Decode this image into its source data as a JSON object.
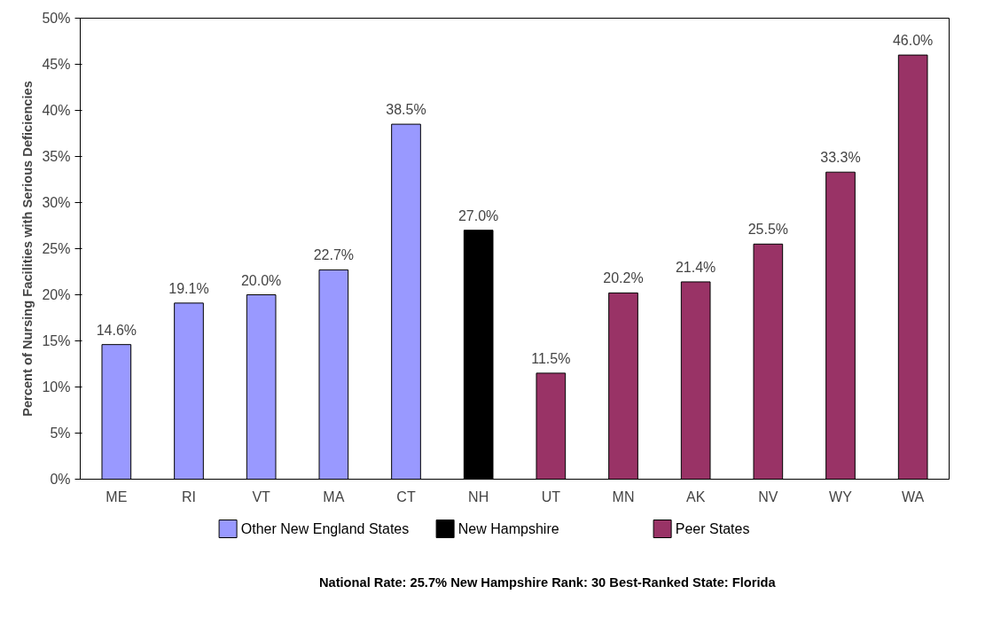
{
  "chart_data": {
    "type": "bar",
    "ylabel": "Percent of Nursing Facilities with Serious Deficiencies",
    "categories": [
      "ME",
      "RI",
      "VT",
      "MA",
      "CT",
      "NH",
      "UT",
      "MN",
      "AK",
      "NV",
      "WY",
      "WA"
    ],
    "series": [
      {
        "name": "Other New England States",
        "color": "#9999ff",
        "values": [
          14.6,
          19.1,
          20.0,
          22.7,
          38.5,
          null,
          null,
          null,
          null,
          null,
          null,
          null
        ],
        "value_labels": [
          "14.6%",
          "19.1%",
          "20.0%",
          "22.7%",
          "38.5%",
          null,
          null,
          null,
          null,
          null,
          null,
          null
        ]
      },
      {
        "name": "New Hampshire",
        "color": "#000000",
        "values": [
          null,
          null,
          null,
          null,
          null,
          27.0,
          null,
          null,
          null,
          null,
          null,
          null
        ],
        "value_labels": [
          null,
          null,
          null,
          null,
          null,
          "27.0%",
          null,
          null,
          null,
          null,
          null,
          null
        ]
      },
      {
        "name": "Peer States",
        "color": "#993366",
        "values": [
          null,
          null,
          null,
          null,
          null,
          null,
          11.5,
          20.2,
          21.4,
          25.5,
          33.3,
          46.0
        ],
        "value_labels": [
          null,
          null,
          null,
          null,
          null,
          null,
          "11.5%",
          "20.2%",
          "21.4%",
          "25.5%",
          "33.3%",
          "46.0%"
        ]
      }
    ],
    "ylim": [
      0,
      50
    ],
    "yticks": [
      {
        "value": 0,
        "label": "0%"
      },
      {
        "value": 5,
        "label": "5%"
      },
      {
        "value": 10,
        "label": "10%"
      },
      {
        "value": 15,
        "label": "15%"
      },
      {
        "value": 20,
        "label": "20%"
      },
      {
        "value": 25,
        "label": "25%"
      },
      {
        "value": 30,
        "label": "30%"
      },
      {
        "value": 35,
        "label": "35%"
      },
      {
        "value": 40,
        "label": "40%"
      },
      {
        "value": 45,
        "label": "45%"
      },
      {
        "value": 50,
        "label": "50%"
      }
    ],
    "grid": false,
    "legend": "bottom",
    "annotations": [
      "National Rate: 25.7%  New Hampshire Rank: 30      Best-Ranked State: Florida"
    ]
  }
}
